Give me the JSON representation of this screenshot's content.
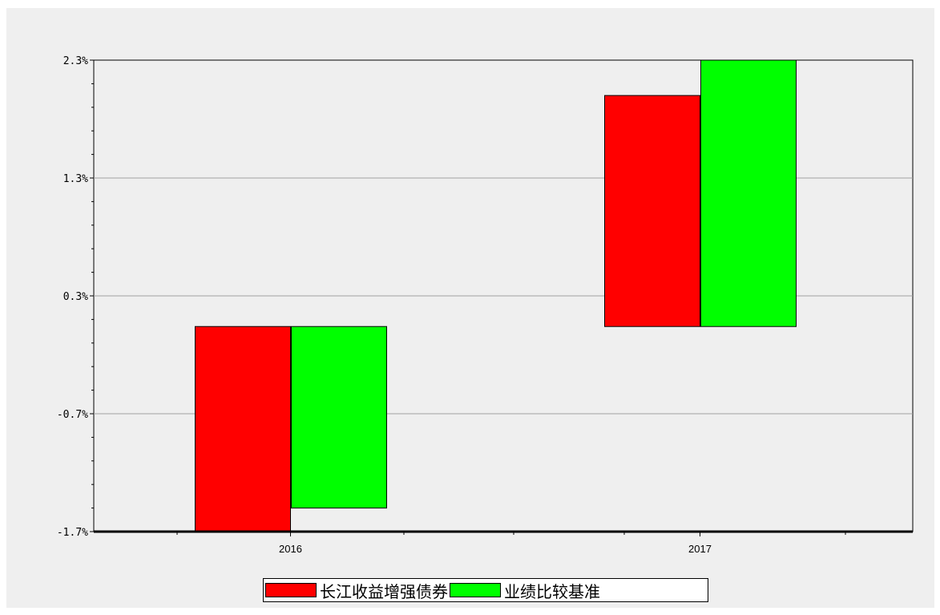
{
  "chart_data": {
    "type": "bar",
    "categories": [
      "2016",
      "2017"
    ],
    "series": [
      {
        "name": "长江收益增强债券",
        "color": "#ff0000",
        "values": [
          -1.7,
          2.0
        ]
      },
      {
        "name": "业绩比较基准",
        "color": "#00ff00",
        "values": [
          -1.5,
          2.3
        ]
      }
    ],
    "y_ticks": [
      "2.3%",
      "1.3%",
      "0.3%",
      "-0.7%",
      "-1.7%"
    ],
    "y_tick_values": [
      2.3,
      1.3,
      0.3,
      -0.7,
      -1.7
    ],
    "ylim": [
      -1.7,
      2.3
    ],
    "baseline": 0.04,
    "grid": true,
    "legend_position": "bottom-center"
  }
}
